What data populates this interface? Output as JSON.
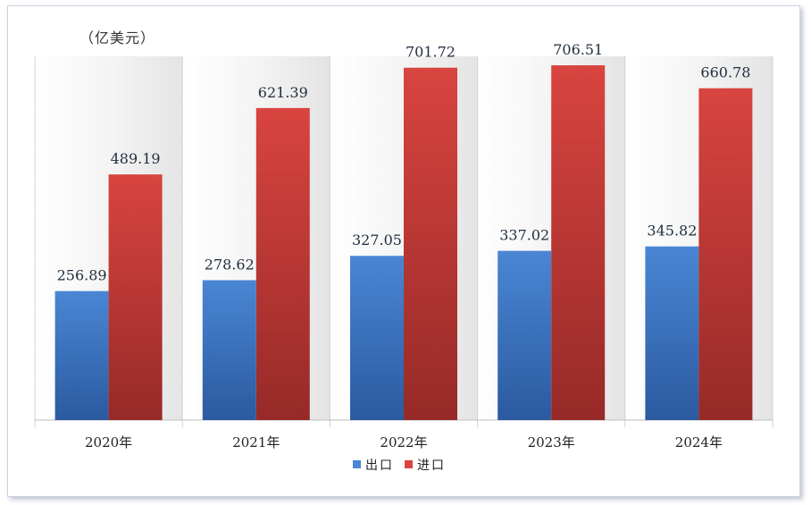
{
  "chart_data": {
    "type": "bar",
    "unit": "（亿美元）",
    "categories": [
      "2020年",
      "2021年",
      "2022年",
      "2023年",
      "2024年"
    ],
    "series": [
      {
        "name": "出口",
        "values": [
          256.89,
          278.62,
          327.05,
          337.02,
          345.82
        ]
      },
      {
        "name": "进口",
        "values": [
          489.19,
          621.39,
          701.72,
          706.51,
          660.78
        ]
      }
    ],
    "value_labels": {
      "出口": [
        "256.89",
        "278.62",
        "327.05",
        "337.02",
        "345.82"
      ],
      "进口": [
        "489.19",
        "621.39",
        "701.72",
        "706.51",
        "660.78"
      ]
    },
    "ylim": [
      0,
      760
    ],
    "grid": false,
    "legend": "bottom",
    "colors": {
      "出口": [
        "#4a86d4",
        "#2b5aa0"
      ],
      "进口": [
        "#d9443f",
        "#962a28"
      ],
      "panel_light": "#ffffff",
      "panel_dark": "#e4e4e4",
      "separator": "#d2d2d2"
    }
  }
}
